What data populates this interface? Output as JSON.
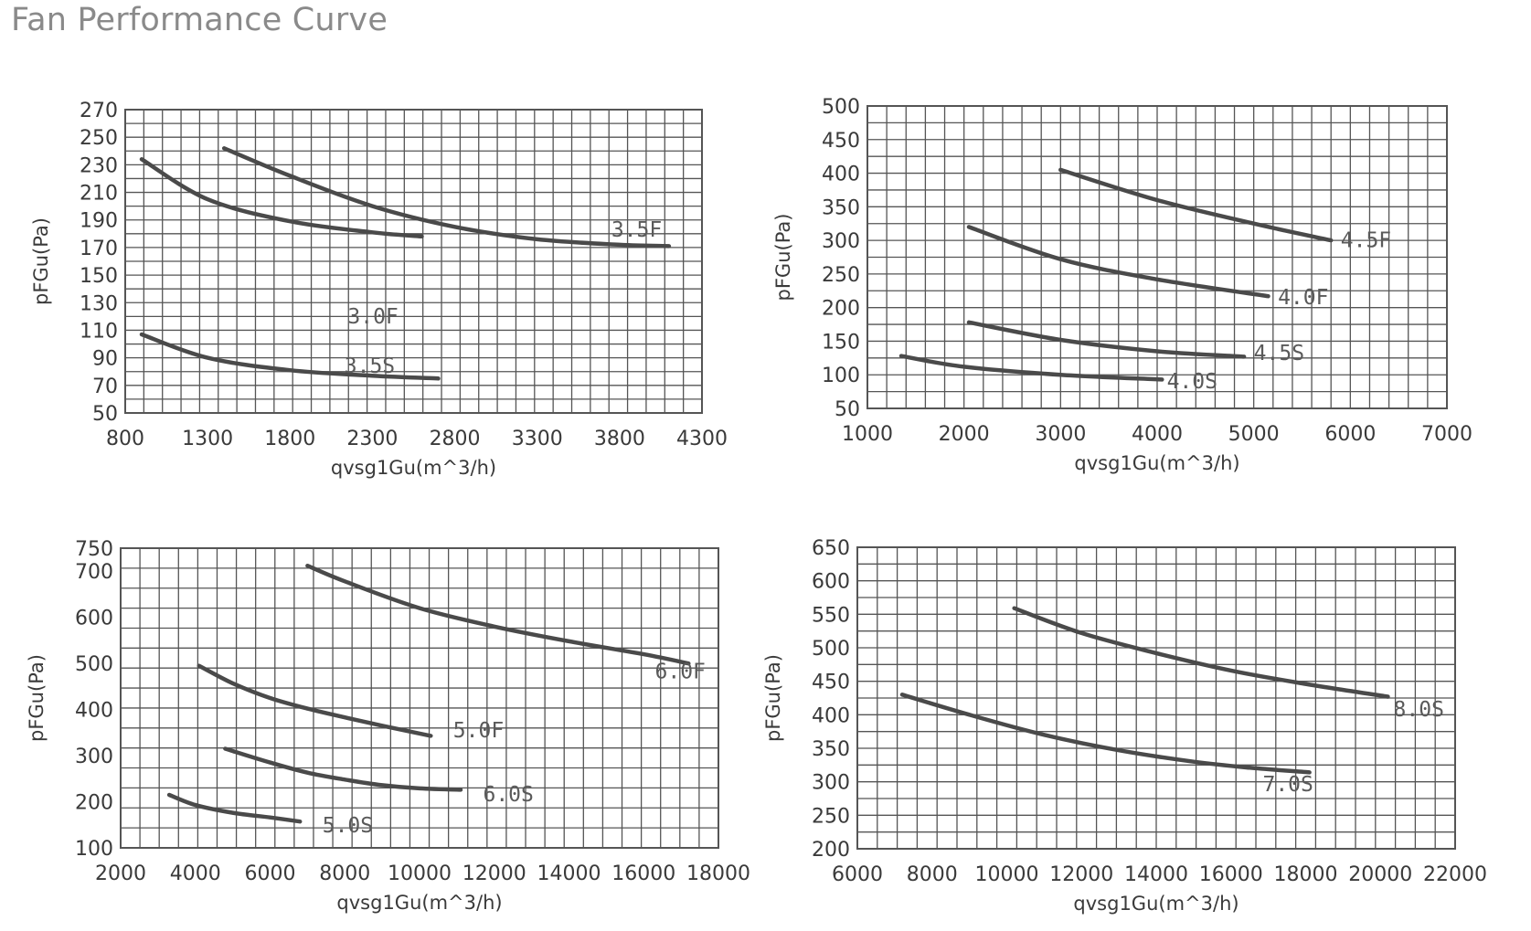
{
  "page": {
    "title": "Fan Performance Curve"
  },
  "colors": {
    "grid": "#555555",
    "curve": "#4a4a4a",
    "text": "#3a3a3a",
    "title": "#8a8a8a"
  },
  "chart_data": [
    {
      "type": "line",
      "title": "",
      "xlabel": "qvsg1Gu(m^3/h)",
      "ylabel": "pFGu(Pa)",
      "xlim": [
        800,
        4300
      ],
      "ylim": [
        50,
        270
      ],
      "xticks": [
        800,
        1300,
        1800,
        2300,
        2800,
        3300,
        3800,
        4300
      ],
      "yticks": [
        50,
        70,
        90,
        110,
        130,
        150,
        170,
        190,
        210,
        230,
        250,
        270
      ],
      "grid": true,
      "series": [
        {
          "name": "3.5F",
          "x": [
            1400,
            1800,
            2300,
            2800,
            3300,
            3800,
            4100
          ],
          "y": [
            242,
            222,
            200,
            185,
            176,
            172,
            171
          ]
        },
        {
          "name": "3.0F",
          "x": [
            900,
            1300,
            1800,
            2300,
            2600
          ],
          "y": [
            234,
            205,
            189,
            181,
            178
          ]
        },
        {
          "name": "3.5S",
          "x": [
            900,
            1300,
            1800,
            2300,
            2700
          ],
          "y": [
            107,
            90,
            81,
            77,
            75
          ]
        }
      ],
      "annotations": [
        {
          "text": "3.5F",
          "x": 3750,
          "y": 178
        },
        {
          "text": "3.0F",
          "x": 2150,
          "y": 115
        },
        {
          "text": "3.5S",
          "x": 2130,
          "y": 79
        }
      ]
    },
    {
      "type": "line",
      "title": "",
      "xlabel": "qvsg1Gu(m^3/h)",
      "ylabel": "pFGu(Pa)",
      "xlim": [
        1000,
        7000
      ],
      "ylim": [
        50,
        500
      ],
      "xticks": [
        1000,
        2000,
        3000,
        4000,
        5000,
        6000,
        7000
      ],
      "yticks": [
        50,
        100,
        150,
        200,
        250,
        300,
        350,
        400,
        450,
        500
      ],
      "grid": true,
      "series": [
        {
          "name": "4.5F",
          "x": [
            3000,
            4000,
            5000,
            5800
          ],
          "y": [
            405,
            360,
            325,
            300
          ]
        },
        {
          "name": "4.0F",
          "x": [
            2050,
            3000,
            4000,
            5150
          ],
          "y": [
            320,
            272,
            242,
            217
          ]
        },
        {
          "name": "4.5S",
          "x": [
            2050,
            3000,
            4000,
            4900
          ],
          "y": [
            178,
            152,
            135,
            127
          ]
        },
        {
          "name": "4.0S",
          "x": [
            1350,
            2000,
            3000,
            4050
          ],
          "y": [
            128,
            112,
            100,
            93
          ]
        }
      ],
      "annotations": [
        {
          "text": "4.5F",
          "x": 5900,
          "y": 290
        },
        {
          "text": "4.0F",
          "x": 5250,
          "y": 205
        },
        {
          "text": "4.5S",
          "x": 5000,
          "y": 122
        },
        {
          "text": "4.0S",
          "x": 4100,
          "y": 80
        }
      ]
    },
    {
      "type": "line",
      "title": "",
      "xlabel": "qvsg1Gu(m^3/h)",
      "ylabel": "pFGu(Pa)",
      "xlim": [
        2000,
        18000
      ],
      "ylim": [
        100,
        750
      ],
      "xticks": [
        2000,
        4000,
        6000,
        8000,
        10000,
        12000,
        14000,
        16000,
        18000
      ],
      "yticks": [
        100,
        200,
        300,
        400,
        500,
        600,
        700,
        750
      ],
      "grid": true,
      "series": [
        {
          "name": "6.0F",
          "x": [
            7000,
            8000,
            10000,
            12000,
            14000,
            16000,
            17200
          ],
          "y": [
            712,
            678,
            620,
            580,
            548,
            520,
            500
          ]
        },
        {
          "name": "5.0F",
          "x": [
            4100,
            5000,
            6000,
            7000,
            8000,
            9000,
            10300
          ],
          "y": [
            495,
            457,
            425,
            402,
            383,
            365,
            343
          ]
        },
        {
          "name": "6.0S",
          "x": [
            4800,
            6000,
            7000,
            8000,
            9000,
            10000,
            11100
          ],
          "y": [
            315,
            285,
            263,
            248,
            236,
            229,
            226
          ]
        },
        {
          "name": "5.0S",
          "x": [
            3300,
            4000,
            5000,
            6000,
            6800
          ],
          "y": [
            215,
            193,
            176,
            166,
            157
          ]
        }
      ],
      "annotations": [
        {
          "text": "6.0F",
          "x": 16300,
          "y": 468
        },
        {
          "text": "5.0F",
          "x": 10900,
          "y": 340
        },
        {
          "text": "6.0S",
          "x": 11700,
          "y": 201
        },
        {
          "text": "5.0S",
          "x": 7400,
          "y": 134
        }
      ]
    },
    {
      "type": "line",
      "title": "",
      "xlabel": "qvsg1Gu(m^3/h)",
      "ylabel": "pFGu(Pa)",
      "xlim": [
        6000,
        22000
      ],
      "ylim": [
        200,
        650
      ],
      "xticks": [
        6000,
        8000,
        10000,
        12000,
        14000,
        16000,
        18000,
        20000,
        22000
      ],
      "yticks": [
        200,
        250,
        300,
        350,
        400,
        450,
        500,
        550,
        600,
        650
      ],
      "grid": true,
      "series": [
        {
          "name": "8.0S",
          "x": [
            10200,
            12000,
            14000,
            16000,
            18000,
            20200
          ],
          "y": [
            559,
            522,
            492,
            466,
            446,
            427
          ]
        },
        {
          "name": "7.0S",
          "x": [
            7200,
            9000,
            11000,
            13000,
            15000,
            16500,
            18100
          ],
          "y": [
            430,
            400,
            370,
            347,
            330,
            321,
            314
          ]
        }
      ],
      "annotations": [
        {
          "text": "8.0S",
          "x": 20350,
          "y": 398
        },
        {
          "text": "7.0S",
          "x": 16850,
          "y": 286
        }
      ]
    }
  ]
}
